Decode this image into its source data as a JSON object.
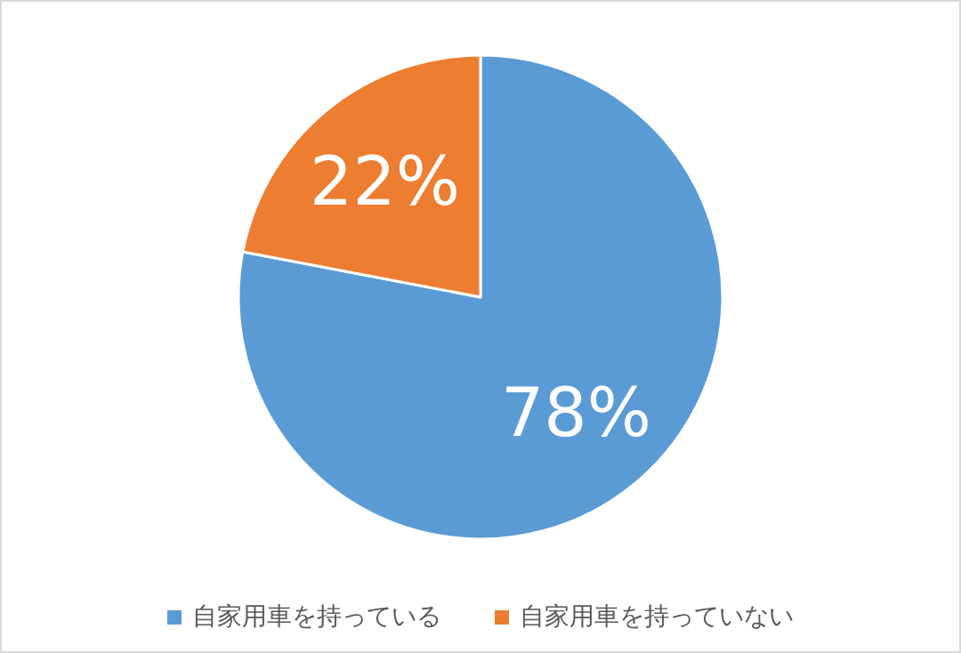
{
  "chart_data": {
    "type": "pie",
    "categories": [
      "自家用車を持っている",
      "自家用車を持っていない"
    ],
    "values": [
      78,
      22
    ],
    "colors": [
      "#5b9bd5",
      "#ed7d31"
    ],
    "value_labels": [
      "78%",
      "22%"
    ],
    "legend": "bottom"
  }
}
